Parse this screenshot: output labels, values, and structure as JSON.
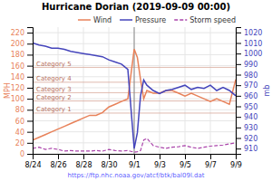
{
  "chart_data": {
    "type": "line",
    "title": "Hurricane Dorian (2019-09-09 00:00)",
    "ylabel": "MPH",
    "y2label": "mb",
    "x": [
      0,
      0.5,
      1,
      1.5,
      2,
      2.5,
      3,
      3.5,
      4,
      4.5,
      5,
      5.5,
      6,
      6.5,
      7,
      7.5,
      8,
      8.25,
      8.5,
      8.75,
      9,
      9.5,
      10,
      10.5,
      11,
      11.5,
      12,
      12.5,
      13,
      13.5,
      14,
      14.5,
      15,
      15.5,
      16
    ],
    "xlim": [
      0,
      16
    ],
    "xticks": [
      {
        "value": 0,
        "label": "8/24"
      },
      {
        "value": 2,
        "label": "8/26"
      },
      {
        "value": 4,
        "label": "8/28"
      },
      {
        "value": 6,
        "label": "8/30"
      },
      {
        "value": 8,
        "label": "9/1"
      },
      {
        "value": 10,
        "label": "9/3"
      },
      {
        "value": 12,
        "label": "9/5"
      },
      {
        "value": 14,
        "label": "9/7"
      },
      {
        "value": 16,
        "label": "9/9"
      }
    ],
    "ylim": [
      0,
      230
    ],
    "yticks": [
      0,
      20,
      40,
      60,
      80,
      100,
      120,
      140,
      160,
      180,
      200,
      220
    ],
    "y2lim": [
      905,
      1025
    ],
    "y2ticks": [
      910,
      920,
      930,
      940,
      950,
      960,
      970,
      980,
      990,
      1000,
      1010,
      1020
    ],
    "grid": true,
    "legend": "upper right",
    "series": [
      {
        "name": "Wind",
        "color": "#e8825a",
        "line_style": "solid",
        "values": [
          25,
          30,
          35,
          40,
          45,
          50,
          55,
          60,
          65,
          70,
          70,
          75,
          85,
          90,
          95,
          100,
          190,
          175,
          135,
          100,
          115,
          110,
          110,
          115,
          115,
          110,
          105,
          110,
          105,
          100,
          95,
          100,
          95,
          90,
          135
        ]
      },
      {
        "name": "Pressure",
        "color": "#4444bb",
        "line_style": "solid",
        "axis": "y2",
        "values": [
          1010,
          1008,
          1007,
          1005,
          1005,
          1004,
          1002,
          1001,
          1000,
          999,
          998,
          997,
          994,
          992,
          990,
          985,
          910,
          925,
          960,
          975,
          970,
          965,
          962,
          965,
          966,
          968,
          970,
          966,
          968,
          967,
          970,
          965,
          968,
          965,
          960
        ]
      },
      {
        "name": "Storm speed",
        "color": "#aa44aa",
        "line_style": "dashed",
        "values": [
          10,
          12,
          8,
          10,
          8,
          5,
          6,
          5,
          5,
          5,
          6,
          5,
          8,
          6,
          5,
          6,
          3,
          4,
          6,
          25,
          28,
          15,
          12,
          10,
          12,
          13,
          15,
          12,
          10,
          12,
          14,
          15,
          16,
          18,
          20
        ]
      }
    ],
    "annotations": [
      {
        "y": 74,
        "text": "Category 1"
      },
      {
        "y": 96,
        "text": "Category 2"
      },
      {
        "y": 111,
        "text": "Category 3"
      },
      {
        "y": 130,
        "text": "Category 4"
      },
      {
        "y": 157,
        "text": "Category 5"
      }
    ],
    "vlines": [
      8.0
    ],
    "source": "https://ftp.nhc.noaa.gov/atcf/btk/bal09l.dat"
  }
}
